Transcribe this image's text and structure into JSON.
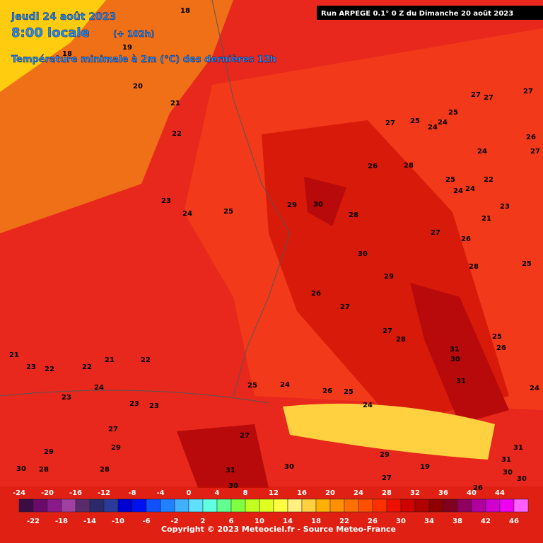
{
  "header": {
    "date": "Jeudi 24 août 2023",
    "time": "8:00 locale",
    "lead": "(+ 102h)",
    "field": "Température minimale à 2m (°C) des dernières 12h",
    "run": "Run ARPEGE 0.1° 0 Z du Dimanche 20 août 2023"
  },
  "map": {
    "contour_labels": [
      18,
      19,
      18,
      20,
      21,
      22,
      23,
      24,
      25,
      29,
      30,
      28,
      26,
      28,
      27,
      25,
      24,
      24,
      25,
      27,
      27,
      27,
      26,
      27,
      24,
      25,
      24,
      24,
      22,
      23,
      21,
      27,
      26,
      28,
      25,
      30,
      29,
      26,
      27,
      27,
      28,
      31,
      30,
      31,
      25,
      26,
      24,
      21,
      23,
      22,
      22,
      21,
      24,
      23,
      22,
      23,
      23,
      25,
      24,
      26,
      25,
      24,
      29,
      27,
      30,
      28,
      31,
      30,
      29,
      31,
      30,
      27,
      19,
      30,
      31,
      30,
      29,
      28,
      26,
      27
    ],
    "colors": {
      "sea": "#e8281c",
      "land": "#f23a1a",
      "warm": "#d81a0a",
      "hot": "#b80a0a",
      "orange": "#f07018",
      "yellow": "#ffcc10",
      "mountains": "#ffd040"
    }
  },
  "color_scale": {
    "upper_ticks": [
      -24,
      -20,
      -16,
      -12,
      -8,
      -4,
      0,
      4,
      8,
      12,
      16,
      20,
      24,
      28,
      32,
      36,
      40,
      44
    ],
    "lower_ticks": [
      -22,
      -18,
      -14,
      -10,
      -6,
      -2,
      2,
      6,
      10,
      14,
      18,
      22,
      26,
      30,
      34,
      38,
      42,
      46
    ],
    "colors": [
      "#3c0c46",
      "#6a0a6a",
      "#8a1a8a",
      "#a040a0",
      "#5a2a6a",
      "#2a2a6a",
      "#2a3a9a",
      "#0000d0",
      "#0010f0",
      "#1050ff",
      "#2080ff",
      "#40b0ff",
      "#60e0ff",
      "#60ffe0",
      "#60ff90",
      "#80ff40",
      "#c0ff20",
      "#e0ff20",
      "#ffff40",
      "#fff080",
      "#ffd040",
      "#ffb000",
      "#ff9000",
      "#ff7000",
      "#ff5000",
      "#ff3000",
      "#f01000",
      "#d00000",
      "#b00000",
      "#900000",
      "#800020",
      "#900060",
      "#b000a0",
      "#d000d0",
      "#f000f0",
      "#ff60ff"
    ]
  },
  "footer": "Copyright © 2023 Meteociel.fr - Source Meteo-France"
}
